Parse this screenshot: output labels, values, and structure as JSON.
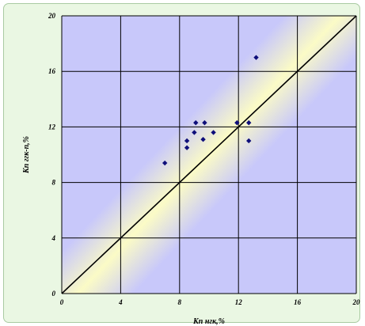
{
  "chart_data": {
    "type": "scatter",
    "title": "",
    "xlabel": "Кп нгк,%",
    "ylabel": "Кп ггк-п,%",
    "xlim": [
      0,
      20
    ],
    "ylim": [
      0,
      20
    ],
    "x_ticks": [
      "0",
      "4",
      "8",
      "12",
      "16",
      "20"
    ],
    "y_ticks": [
      "0",
      "4",
      "8",
      "12",
      "16",
      "20"
    ],
    "grid": true,
    "reference_line": {
      "from": [
        0,
        0
      ],
      "to": [
        20,
        20
      ]
    },
    "series": [
      {
        "points": [
          {
            "x": 7.0,
            "y": 9.4
          },
          {
            "x": 8.5,
            "y": 10.5
          },
          {
            "x": 8.5,
            "y": 11.0
          },
          {
            "x": 9.0,
            "y": 11.6
          },
          {
            "x": 9.1,
            "y": 12.3
          },
          {
            "x": 9.6,
            "y": 11.1
          },
          {
            "x": 9.7,
            "y": 12.3
          },
          {
            "x": 10.3,
            "y": 11.6
          },
          {
            "x": 11.9,
            "y": 12.3
          },
          {
            "x": 12.7,
            "y": 12.3
          },
          {
            "x": 12.7,
            "y": 11.0
          },
          {
            "x": 13.2,
            "y": 17.0
          }
        ]
      }
    ]
  },
  "colors": {
    "frame_bg": "#eaf7e3",
    "plot_blue": "#c8c8fa",
    "band_yellow": "#fbfbc6",
    "marker": "#0e0e7a",
    "grid": "#000000"
  }
}
